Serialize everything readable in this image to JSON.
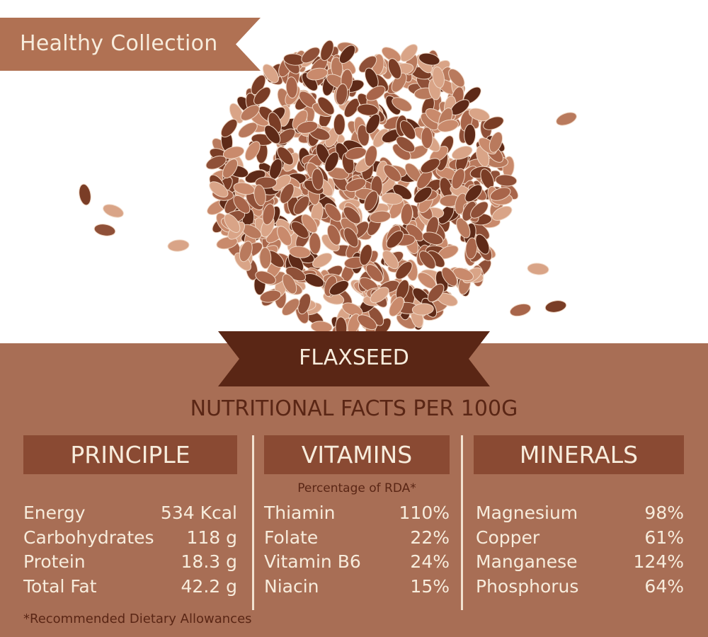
{
  "banner": {
    "label": "Healthy Collection"
  },
  "product": {
    "name": "FLAXSEED"
  },
  "subtitle": "NUTRITIONAL FACTS PER 100G",
  "colors": {
    "panel": "#a86e55",
    "header": "#8a4a33",
    "ribbon": "#5a2615",
    "text_light": "#f7ecdc",
    "text_dark": "#5a2615"
  },
  "principle": {
    "title": "PRINCIPLE",
    "rows": [
      {
        "label": "Energy",
        "value": "534 Kcal"
      },
      {
        "label": "Carbohydrates",
        "value": "118 g"
      },
      {
        "label": "Protein",
        "value": "18.3 g"
      },
      {
        "label": "Total Fat",
        "value": "42.2 g"
      }
    ]
  },
  "vitamins": {
    "title": "VITAMINS",
    "note": "Percentage of RDA*",
    "rows": [
      {
        "label": "Thiamin",
        "value": "110%"
      },
      {
        "label": "Folate",
        "value": "22%"
      },
      {
        "label": "Vitamin B6",
        "value": "24%"
      },
      {
        "label": "Niacin",
        "value": "15%"
      }
    ]
  },
  "minerals": {
    "title": "MINERALS",
    "rows": [
      {
        "label": "Magnesium",
        "value": "98%"
      },
      {
        "label": "Copper",
        "value": "61%"
      },
      {
        "label": "Manganese",
        "value": "124%"
      },
      {
        "label": "Phosphorus",
        "value": "64%"
      }
    ]
  },
  "footnote": "*Recommended Dietary Allowances"
}
